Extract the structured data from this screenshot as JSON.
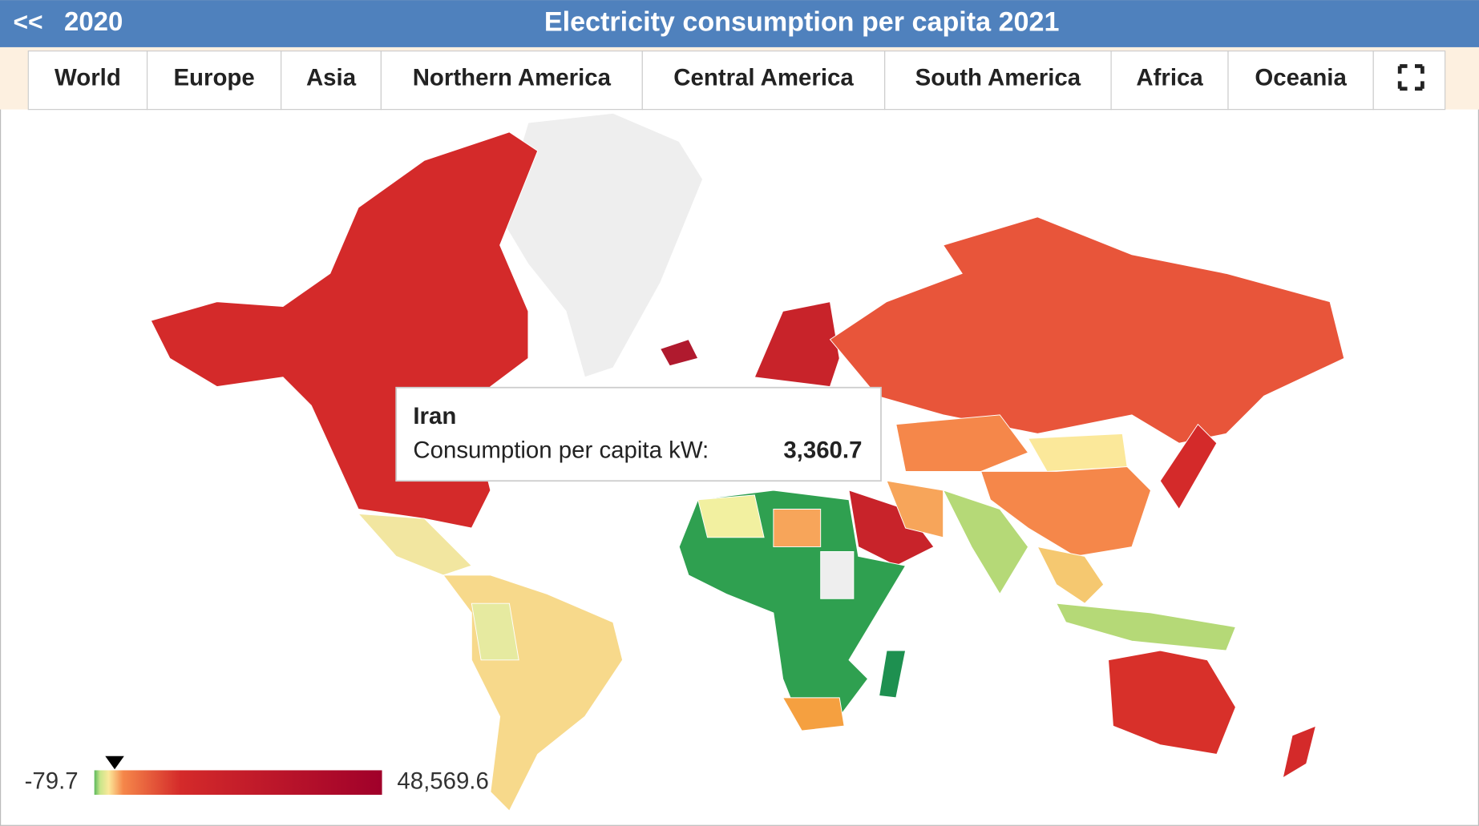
{
  "header": {
    "prev_arrow": "<<",
    "prev_year": "2020",
    "title": "Electricity consumption per capita 2021"
  },
  "tabs": [
    "World",
    "Europe",
    "Asia",
    "Northern America",
    "Central America",
    "South America",
    "Africa",
    "Oceania"
  ],
  "tooltip": {
    "country": "Iran",
    "label": "Consumption per capita kW:",
    "value": {
      "value": 3360.7,
      "label": "3,360.7"
    }
  },
  "legend": {
    "min": -79.7,
    "max": {
      "value": 48569.6,
      "label": "48,569.6"
    }
  }
}
